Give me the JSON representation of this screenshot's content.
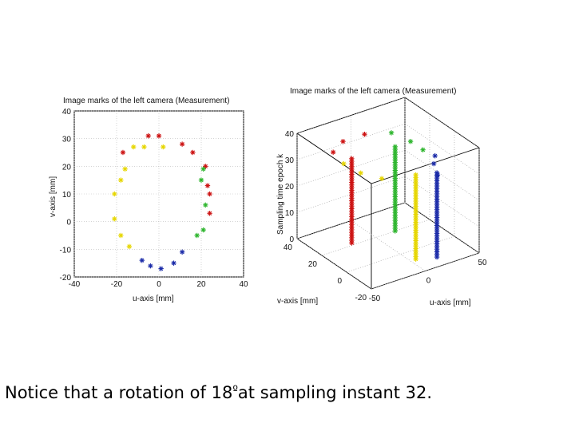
{
  "chart_data": [
    {
      "type": "scatter",
      "title": "Image marks of the left camera (Measurement)",
      "xlabel": "u-axis [mm]",
      "ylabel": "v-axis [mm]",
      "xlim": [
        -40,
        40
      ],
      "ylim": [
        -20,
        40
      ],
      "xticks": [
        "-40",
        "-20",
        "0",
        "20",
        "40"
      ],
      "yticks": [
        "40",
        "30",
        "20",
        "10",
        "0",
        "-10",
        "-20"
      ],
      "grid": true,
      "series": [
        {
          "name": "red",
          "color": "#cc1111",
          "points": [
            [
              -17,
              25
            ],
            [
              -5,
              31
            ],
            [
              0,
              31
            ],
            [
              11,
              28
            ],
            [
              16,
              25
            ],
            [
              22,
              20
            ],
            [
              23,
              13
            ],
            [
              24,
              10
            ],
            [
              24,
              3
            ]
          ]
        },
        {
          "name": "yellow",
          "color": "#e6d600",
          "points": [
            [
              -12,
              27
            ],
            [
              -7,
              27
            ],
            [
              2,
              27
            ],
            [
              -16,
              19
            ],
            [
              -18,
              15
            ],
            [
              -21,
              10
            ],
            [
              -21,
              1
            ],
            [
              -18,
              -5
            ],
            [
              -14,
              -9
            ]
          ]
        },
        {
          "name": "green",
          "color": "#2db52d",
          "points": [
            [
              21,
              19
            ],
            [
              20,
              15
            ],
            [
              22,
              6
            ],
            [
              18,
              -5
            ],
            [
              21,
              -3
            ]
          ]
        },
        {
          "name": "blue",
          "color": "#1a2aa8",
          "points": [
            [
              -8,
              -14
            ],
            [
              -4,
              -16
            ],
            [
              1,
              -17
            ],
            [
              7,
              -15
            ],
            [
              11,
              -11
            ]
          ]
        }
      ]
    },
    {
      "type": "scatter",
      "title": "Image marks of the left camera (Measurement)",
      "xlabel": "u-axis [mm]",
      "ylabel": "v-axis [mm]",
      "zlabel": "Sampling time epoch k",
      "xlim": [
        -50,
        50
      ],
      "ylim": [
        -20,
        40
      ],
      "zlim": [
        0,
        40
      ],
      "xticks": [
        "-50",
        "0",
        "50"
      ],
      "yticks": [
        "40",
        "20",
        "0",
        "-20"
      ],
      "zticks": [
        "40",
        "30",
        "20",
        "10",
        "0"
      ],
      "grid": true,
      "series": [
        {
          "name": "red",
          "color": "#cc1111",
          "x": -20,
          "y": 22,
          "z_range": [
            0,
            32
          ]
        },
        {
          "name": "green",
          "color": "#2db52d",
          "x": 18,
          "y": 20,
          "z_range": [
            0,
            32
          ]
        },
        {
          "name": "yellow",
          "color": "#e6d600",
          "x": 5,
          "y": -8,
          "z_range": [
            0,
            32
          ]
        },
        {
          "name": "blue",
          "color": "#1a2aa8",
          "x": 20,
          "y": -12,
          "z_range": [
            0,
            32
          ]
        }
      ]
    }
  ],
  "caption": {
    "prefix": "Notice that a rotation of ",
    "value": "18",
    "unit": "º",
    "suffix": "at sampling instant 32."
  }
}
